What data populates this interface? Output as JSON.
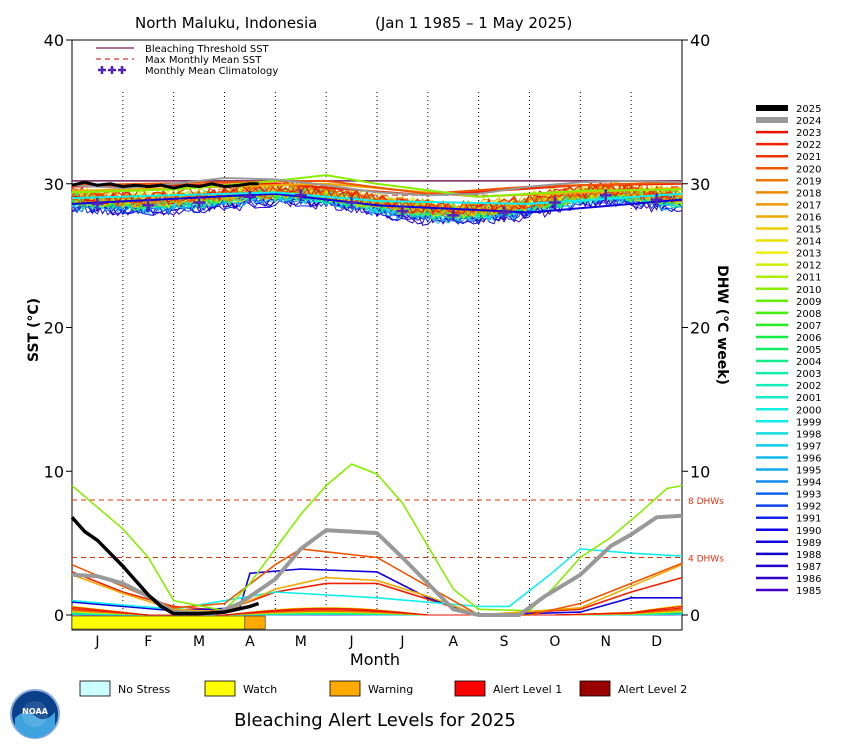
{
  "chart_data": {
    "type": "line",
    "title": "North Maluku, Indonesia",
    "date_range": "(Jan 1 1985 – 1 May 2025)",
    "xlabel": "Month",
    "ylabel_left": "SST (°C)",
    "ylabel_right": "DHW (°C week)",
    "ylim": [
      0,
      40
    ],
    "yticks": [
      0,
      10,
      20,
      30,
      40
    ],
    "months": [
      "J",
      "F",
      "M",
      "A",
      "M",
      "J",
      "J",
      "A",
      "S",
      "O",
      "N",
      "D"
    ],
    "grid": "vertical dotted month separators",
    "reference_lines": [
      {
        "label": "8 DHWs",
        "value": 8,
        "color": "#dd3311"
      },
      {
        "label": "4 DHWs",
        "value": 4,
        "color": "#dd3311"
      }
    ],
    "top_legend": [
      {
        "label": "Bleaching Threshold SST",
        "style": "solid",
        "color": "#7a1f5c"
      },
      {
        "label": "Max Monthly Mean SST",
        "style": "dashed",
        "color": "#cc3333"
      },
      {
        "label": "Monthly Mean Climatology",
        "style": "plus",
        "color": "#5522bb"
      }
    ],
    "bleaching_threshold_sst": 30.2,
    "max_monthly_mean_sst": 29.2,
    "monthly_mean_climatology": [
      28.6,
      28.5,
      28.7,
      29.1,
      29.2,
      28.7,
      28.1,
      27.8,
      28.0,
      28.7,
      29.2,
      28.9
    ],
    "legend_years": [
      "2025",
      "2024",
      "2023",
      "2022",
      "2021",
      "2020",
      "2019",
      "2018",
      "2017",
      "2016",
      "2015",
      "2014",
      "2013",
      "2012",
      "2011",
      "2010",
      "2009",
      "2008",
      "2007",
      "2006",
      "2005",
      "2004",
      "2003",
      "2002",
      "2001",
      "2000",
      "1999",
      "1998",
      "1997",
      "1996",
      "1995",
      "1994",
      "1993",
      "1992",
      "1991",
      "1990",
      "1989",
      "1988",
      "1987",
      "1986",
      "1985"
    ],
    "year_colors": [
      "#000000",
      "#999999",
      "#ee1100",
      "#ee2200",
      "#ee3300",
      "#ee5500",
      "#ee7700",
      "#ee8800",
      "#ee9900",
      "#eeaa00",
      "#eecc00",
      "#eedd00",
      "#eeee00",
      "#ccee00",
      "#aaee00",
      "#88ee00",
      "#66ee00",
      "#44ee00",
      "#22ee22",
      "#11ee44",
      "#11ee66",
      "#11ee88",
      "#11eeaa",
      "#11eebb",
      "#11eecc",
      "#11eedd",
      "#11eeee",
      "#11dddd",
      "#11ccee",
      "#11bbee",
      "#11aaee",
      "#1188ee",
      "#1166ee",
      "#1144ee",
      "#1122ee",
      "#1100ee",
      "#1100dd",
      "#1100cc",
      "#2200cc",
      "#3300cc",
      "#4400cc"
    ],
    "highlight_series": [
      {
        "name": "2025",
        "color": "#000000",
        "sst": [
          [
            0,
            29.9
          ],
          [
            0.25,
            30.1
          ],
          [
            0.5,
            29.9
          ],
          [
            0.75,
            30.0
          ],
          [
            1,
            29.8
          ],
          [
            1.25,
            29.9
          ],
          [
            1.5,
            29.8
          ],
          [
            1.75,
            29.9
          ],
          [
            2,
            29.7
          ],
          [
            2.25,
            29.9
          ],
          [
            2.5,
            29.8
          ],
          [
            2.75,
            30.0
          ],
          [
            3,
            29.8
          ],
          [
            3.3,
            29.9
          ],
          [
            3.5,
            30.0
          ],
          [
            3.67,
            30.0
          ]
        ],
        "dhw": [
          [
            0,
            6.8
          ],
          [
            0.25,
            5.8
          ],
          [
            0.5,
            5.2
          ],
          [
            0.75,
            4.3
          ],
          [
            1,
            3.4
          ],
          [
            1.25,
            2.4
          ],
          [
            1.5,
            1.4
          ],
          [
            1.75,
            0.6
          ],
          [
            2,
            0.1
          ],
          [
            2.5,
            0.1
          ],
          [
            3,
            0.2
          ],
          [
            3.5,
            0.6
          ],
          [
            3.67,
            0.8
          ]
        ]
      },
      {
        "name": "2024",
        "color": "#999999",
        "sst": [
          [
            0,
            29.9
          ],
          [
            1,
            29.7
          ],
          [
            2,
            30.0
          ],
          [
            3,
            30.4
          ],
          [
            4,
            30.3
          ],
          [
            5,
            29.9
          ],
          [
            6,
            29.4
          ],
          [
            7,
            29.2
          ],
          [
            8,
            29.3
          ],
          [
            9,
            29.8
          ],
          [
            10,
            30.1
          ],
          [
            11,
            30.2
          ],
          [
            12,
            30.1
          ]
        ],
        "dhw": [
          [
            0,
            2.8
          ],
          [
            0.5,
            2.7
          ],
          [
            1,
            2.2
          ],
          [
            1.5,
            1.3
          ],
          [
            2,
            0.2
          ],
          [
            2.8,
            0.1
          ],
          [
            3.3,
            0.8
          ],
          [
            4,
            2.5
          ],
          [
            4.5,
            4.6
          ],
          [
            5,
            5.9
          ],
          [
            5.5,
            5.8
          ],
          [
            6,
            5.7
          ],
          [
            6.5,
            4.0
          ],
          [
            7,
            2.2
          ],
          [
            7.5,
            0.4
          ],
          [
            8,
            0
          ],
          [
            8.8,
            0
          ],
          [
            9.3,
            1.3
          ],
          [
            10,
            2.8
          ],
          [
            10.6,
            4.8
          ],
          [
            11,
            5.6
          ],
          [
            11.5,
            6.8
          ],
          [
            12,
            6.9
          ]
        ]
      },
      {
        "name": "2010",
        "color": "#88ee00",
        "sst": [
          [
            0,
            29.4
          ],
          [
            2,
            29.6
          ],
          [
            4,
            30.2
          ],
          [
            5,
            30.6
          ],
          [
            6,
            30.0
          ],
          [
            8,
            29.1
          ],
          [
            10,
            29.5
          ],
          [
            12,
            29.6
          ]
        ],
        "dhw": [
          [
            0,
            9.0
          ],
          [
            0.5,
            7.5
          ],
          [
            1,
            6.0
          ],
          [
            1.5,
            4.0
          ],
          [
            2,
            1.0
          ],
          [
            3,
            0.3
          ],
          [
            3.5,
            2.2
          ],
          [
            4,
            4.6
          ],
          [
            4.5,
            7.0
          ],
          [
            5,
            9.0
          ],
          [
            5.5,
            10.5
          ],
          [
            6,
            9.8
          ],
          [
            6.5,
            7.8
          ],
          [
            7,
            4.8
          ],
          [
            7.5,
            1.8
          ],
          [
            8,
            0.4
          ],
          [
            9,
            0.3
          ],
          [
            9.5,
            2.0
          ],
          [
            10,
            4.0
          ],
          [
            10.6,
            5.4
          ],
          [
            11.2,
            7.2
          ],
          [
            11.7,
            8.8
          ],
          [
            12,
            9.0
          ]
        ]
      },
      {
        "name": "2020",
        "color": "#ee5500",
        "sst": [
          [
            0,
            29.9
          ],
          [
            3,
            30.1
          ],
          [
            5,
            30.2
          ],
          [
            7,
            29.3
          ],
          [
            9,
            29.8
          ],
          [
            12,
            30.1
          ]
        ],
        "dhw": [
          [
            0,
            3.5
          ],
          [
            1,
            2.0
          ],
          [
            2,
            0.5
          ],
          [
            3,
            0.8
          ],
          [
            4,
            3.5
          ],
          [
            4.5,
            4.6
          ],
          [
            5,
            4.4
          ],
          [
            6,
            4.0
          ],
          [
            7,
            2.0
          ],
          [
            8,
            0
          ],
          [
            9,
            0
          ],
          [
            10,
            0.8
          ],
          [
            11,
            2.2
          ],
          [
            12,
            3.6
          ]
        ]
      },
      {
        "name": "2016",
        "color": "#eeaa00",
        "sst": [
          [
            0,
            29.5
          ],
          [
            3,
            29.8
          ],
          [
            5,
            30.0
          ],
          [
            8,
            29.1
          ],
          [
            12,
            29.7
          ]
        ],
        "dhw": [
          [
            0,
            2.8
          ],
          [
            1,
            1.5
          ],
          [
            2,
            0.4
          ],
          [
            3,
            0.2
          ],
          [
            4,
            1.8
          ],
          [
            5,
            2.6
          ],
          [
            6,
            2.4
          ],
          [
            7,
            1.3
          ],
          [
            8,
            0
          ],
          [
            10,
            0.5
          ],
          [
            11,
            2.0
          ],
          [
            12,
            3.5
          ]
        ]
      },
      {
        "name": "1998",
        "color": "#11eeee",
        "sst": [
          [
            0,
            29.0
          ],
          [
            4,
            29.4
          ],
          [
            6,
            28.8
          ],
          [
            9,
            28.6
          ],
          [
            12,
            29.3
          ]
        ],
        "dhw": [
          [
            0,
            1.0
          ],
          [
            2,
            0.4
          ],
          [
            4,
            1.6
          ],
          [
            6,
            1.2
          ],
          [
            8,
            0.6
          ],
          [
            8.6,
            0.6
          ],
          [
            9.4,
            2.8
          ],
          [
            10,
            4.6
          ],
          [
            11,
            4.3
          ],
          [
            12,
            4.1
          ]
        ]
      },
      {
        "name": "1988",
        "color": "#1100dd",
        "sst": [
          [
            0,
            28.6
          ],
          [
            4,
            29.3
          ],
          [
            6,
            28.5
          ],
          [
            9,
            28.0
          ],
          [
            12,
            28.9
          ]
        ],
        "dhw": [
          [
            0,
            0.9
          ],
          [
            2,
            0.3
          ],
          [
            3.3,
            0.5
          ],
          [
            3.5,
            2.9
          ],
          [
            4.5,
            3.2
          ],
          [
            6,
            3.0
          ],
          [
            7,
            1.2
          ],
          [
            8,
            0
          ],
          [
            10,
            0.2
          ],
          [
            11,
            1.2
          ],
          [
            12,
            1.2
          ]
        ]
      },
      {
        "name": "2022",
        "color": "#ee2200",
        "sst": [
          [
            0,
            29.8
          ],
          [
            4,
            30.0
          ],
          [
            7,
            29.2
          ],
          [
            10,
            29.9
          ],
          [
            12,
            30.0
          ]
        ],
        "dhw": [
          [
            0,
            3.0
          ],
          [
            1,
            1.6
          ],
          [
            2,
            0.6
          ],
          [
            3,
            0.3
          ],
          [
            4,
            1.6
          ],
          [
            5,
            2.2
          ],
          [
            6,
            2.2
          ],
          [
            7,
            1.1
          ],
          [
            8,
            0
          ],
          [
            10,
            0.4
          ],
          [
            11,
            1.6
          ],
          [
            12,
            2.6
          ]
        ]
      }
    ],
    "bottom_bar": [
      {
        "from": 0,
        "to": 3.4,
        "level": "Watch"
      },
      {
        "from": 3.4,
        "to": 3.8,
        "level": "Warning"
      }
    ],
    "alert_legend": [
      {
        "label": "No Stress",
        "color": "#ccffff"
      },
      {
        "label": "Watch",
        "color": "#ffff00"
      },
      {
        "label": "Warning",
        "color": "#ffaa00"
      },
      {
        "label": "Alert Level 1",
        "color": "#ff0000"
      },
      {
        "label": "Alert Level 2",
        "color": "#990000"
      }
    ],
    "footer_title": "Bleaching Alert Levels for 2025",
    "logo_text": "NOAA"
  }
}
